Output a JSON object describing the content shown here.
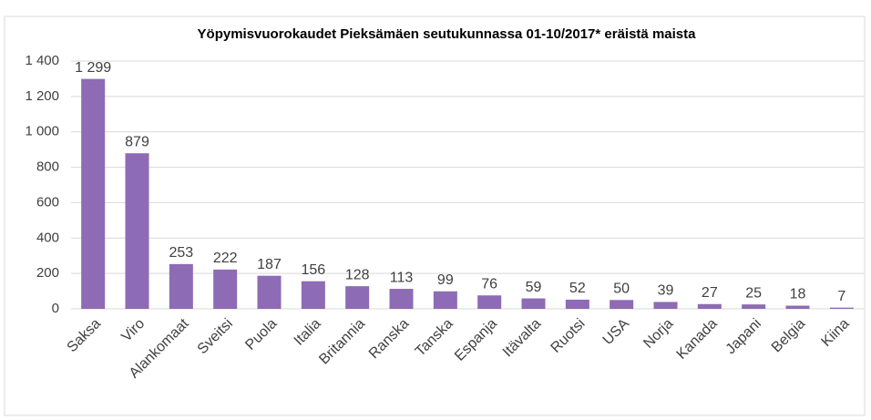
{
  "chart_data": {
    "type": "bar",
    "title": "Yöpymisvuorokaudet Pieksämäen seutukunnassa 01-10/2017* eräistä maista",
    "categories": [
      "Saksa",
      "Viro",
      "Alankomaat",
      "Sveitsi",
      "Puola",
      "Italia",
      "Britannia",
      "Ranska",
      "Tanska",
      "Espanja",
      "Itävalta",
      "Ruotsi",
      "USA",
      "Norja",
      "Kanada",
      "Japani",
      "Belgia",
      "Kiina"
    ],
    "values": [
      1299,
      879,
      253,
      222,
      187,
      156,
      128,
      113,
      99,
      76,
      59,
      52,
      50,
      39,
      27,
      25,
      18,
      7
    ],
    "value_labels": [
      "1 299",
      "879",
      "253",
      "222",
      "187",
      "156",
      "128",
      "113",
      "99",
      "76",
      "59",
      "52",
      "50",
      "39",
      "27",
      "25",
      "18",
      "7"
    ],
    "color": "#8e6bb5",
    "ylim": [
      0,
      1400
    ],
    "yticks": [
      0,
      200,
      400,
      600,
      800,
      {
        "value": 1000,
        "label": "1 000"
      },
      {
        "value": 1200,
        "label": "1 200"
      },
      {
        "value": 1400,
        "label": "1 400"
      }
    ],
    "grid": true
  }
}
